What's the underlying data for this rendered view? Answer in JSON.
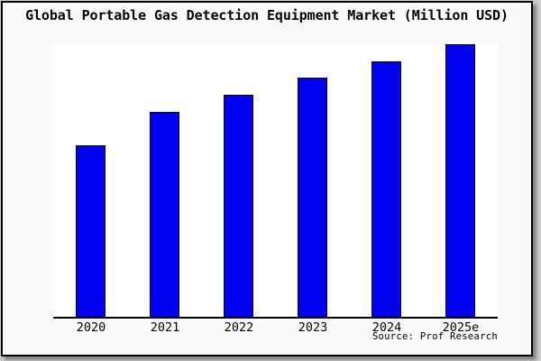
{
  "chart_data": {
    "type": "bar",
    "title": "Global Portable Gas Detection Equipment Market (Million USD)",
    "xlabel": "",
    "ylabel": "",
    "categories": [
      "2020",
      "2021",
      "2022",
      "2023",
      "2024",
      "2025e"
    ],
    "series": [
      {
        "name": "Global Portable Gas Detection Equipment Market",
        "values_pct_of_2025e": [
          62.8,
          75.2,
          81.5,
          87.7,
          93.7,
          100
        ]
      }
    ],
    "y_axis_visible": false,
    "y_tick_labels": [],
    "gridlines": false,
    "legend_position": "none",
    "source_note": "Source: Prof Research",
    "colors": {
      "bar_fill": "#0000f2",
      "bar_edge": "#000000",
      "axis_line": "#000000",
      "plot_background": "#ffffff",
      "canvas_background": "#fafafa",
      "frame_border": "#000000",
      "page_background": "#cdcdcd",
      "title_text": "#000000"
    }
  }
}
